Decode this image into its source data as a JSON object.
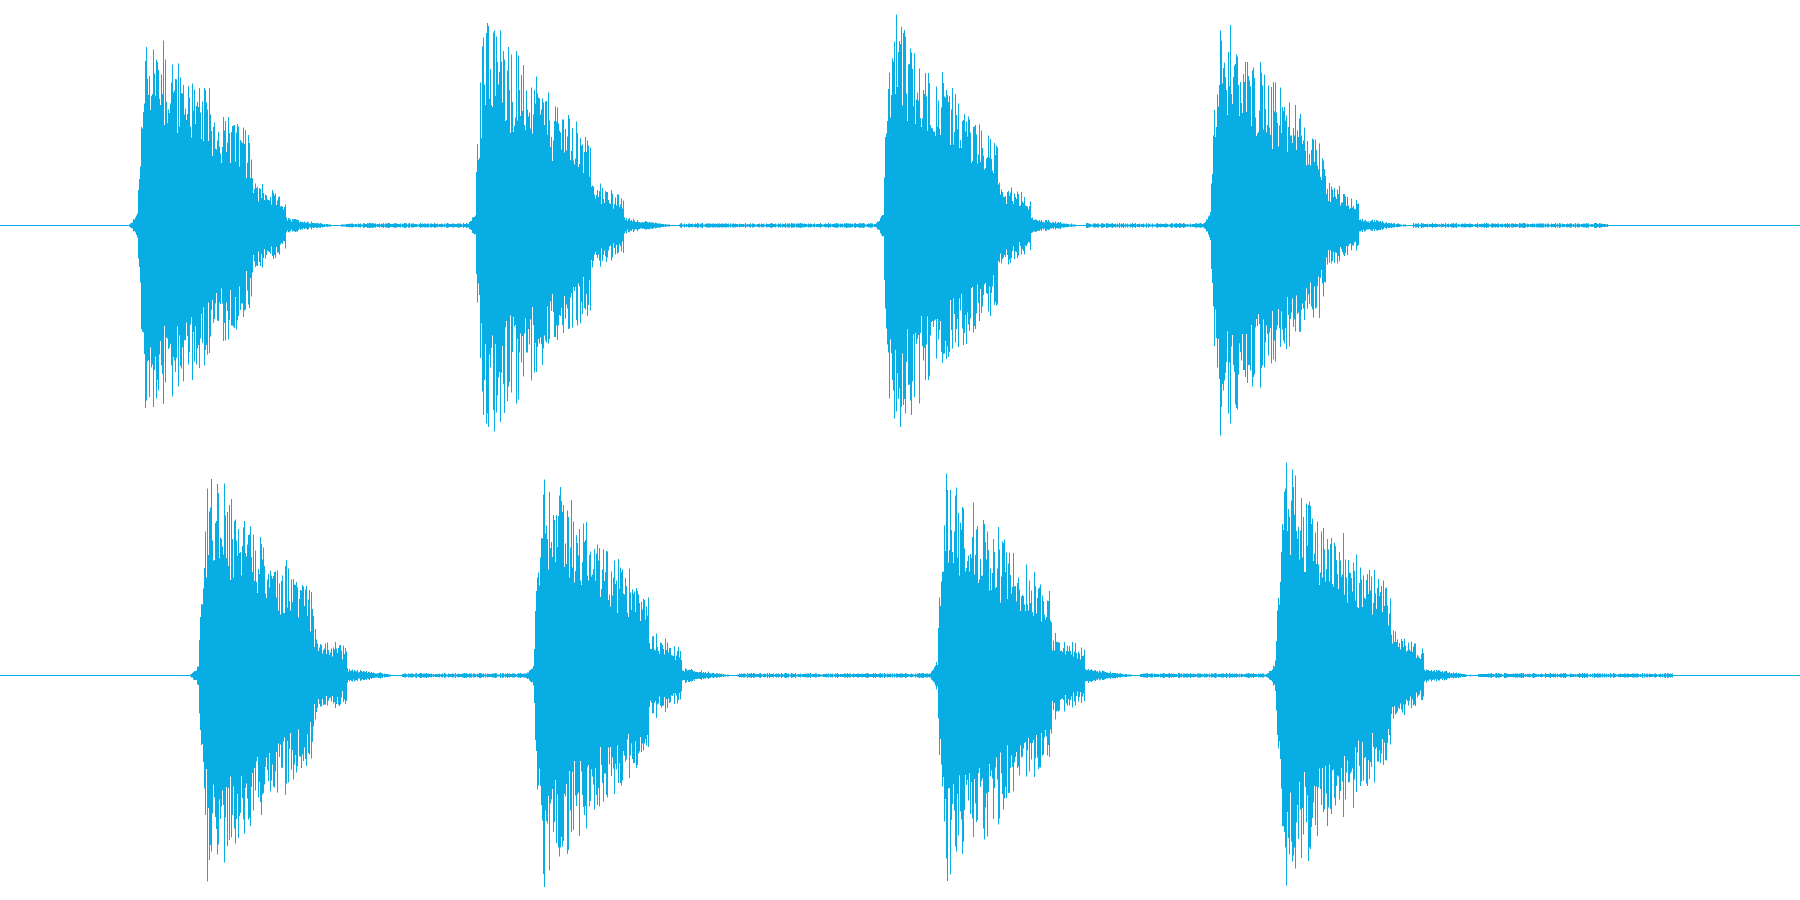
{
  "chart_data": {
    "type": "waveform",
    "title": "",
    "channels": [
      {
        "name": "",
        "bursts": [
          {
            "onset": 0.1,
            "peak": 0.16,
            "end": 0.375,
            "amplitude": 0.98
          },
          {
            "onset": 0.095,
            "peak": 0.075,
            "end": 0.34,
            "amplitude": 0.99
          },
          {
            "onset": 0.1,
            "peak": 0.075,
            "end": 0.34,
            "amplitude": 0.99
          },
          {
            "onset": 0.1,
            "peak": 0.075,
            "end": 0.35,
            "amplitude": 0.99
          }
        ]
      },
      {
        "name": "",
        "bursts": [
          {
            "onset": 0.1,
            "peak": 0.085,
            "end": 0.36,
            "amplitude": 0.97
          },
          {
            "onset": 0.1,
            "peak": 0.115,
            "end": 0.44,
            "amplitude": 0.97
          },
          {
            "onset": 0.1,
            "peak": 0.085,
            "end": 0.5,
            "amplitude": 0.97
          },
          {
            "onset": 0.1,
            "peak": 0.12,
            "end": 0.32,
            "amplitude": 0.99
          }
        ]
      }
    ],
    "burst_starts": [
      [
        0.069,
        0.257,
        0.483,
        0.665
      ],
      [
        0.103,
        0.289,
        0.513,
        0.701
      ]
    ],
    "burst_length": 0.12,
    "color": "#08ade4",
    "background": "#ffffff",
    "grid": false,
    "legend": "none"
  }
}
